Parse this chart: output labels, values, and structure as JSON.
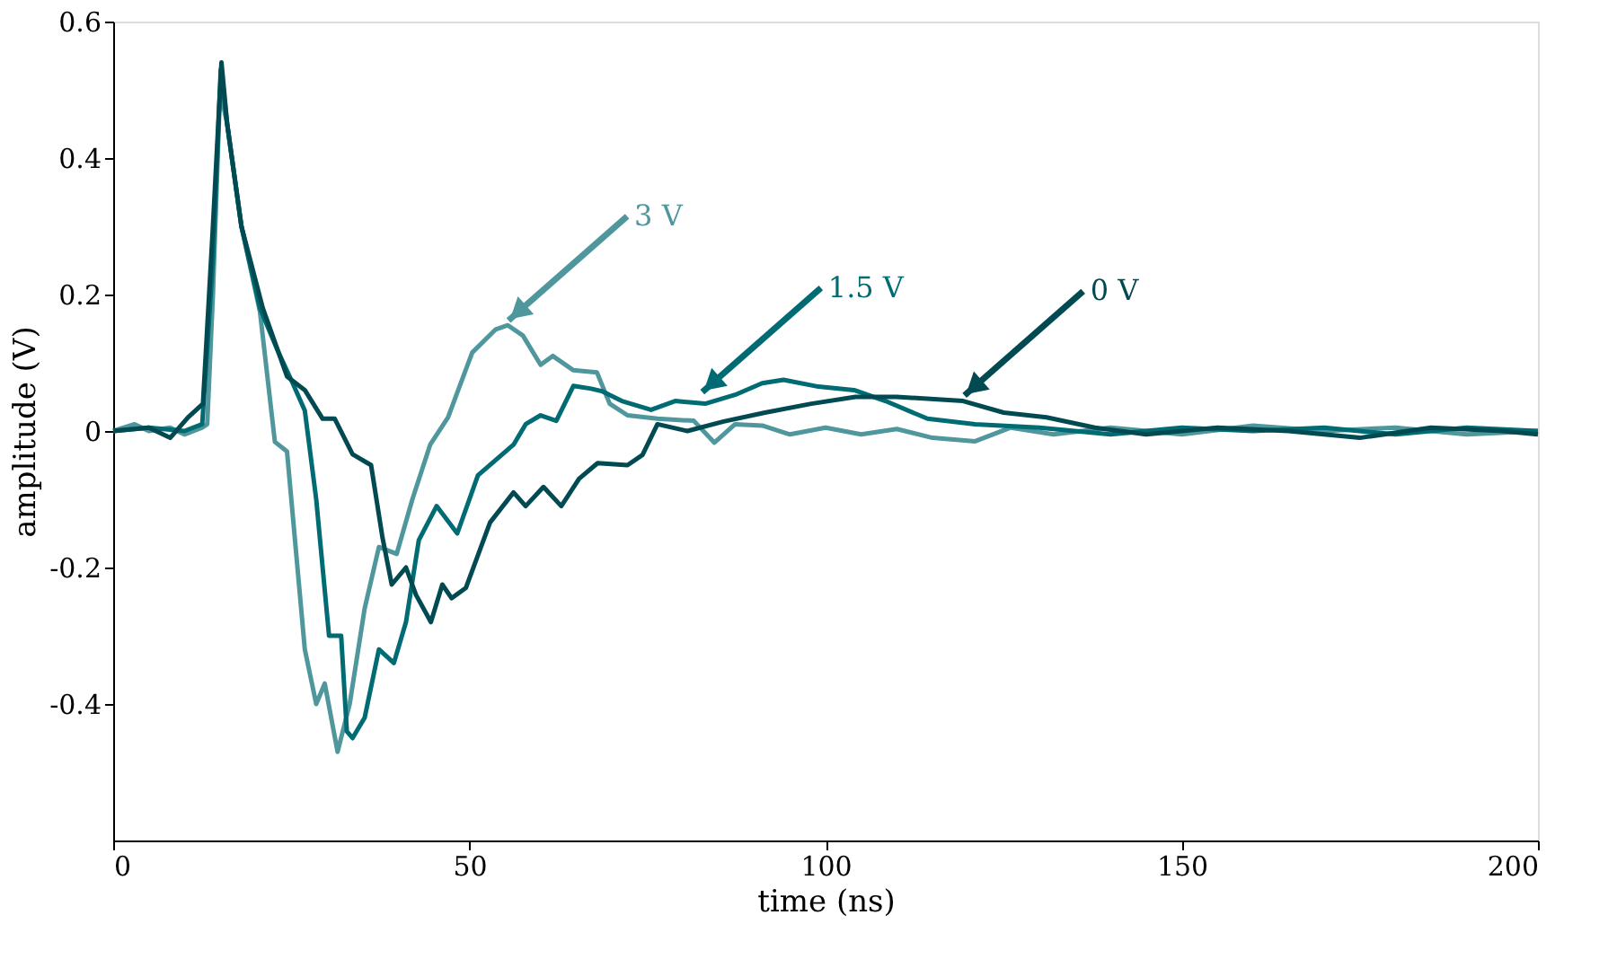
{
  "chart_data": {
    "type": "line",
    "xlabel": "time (ns)",
    "ylabel": "amplitude (V)",
    "xlim": [
      0,
      200
    ],
    "xticks": [
      0,
      50,
      100,
      150,
      200
    ],
    "ylim": [
      -0.6,
      0.6
    ],
    "yticks": [
      -0.4,
      -0.2,
      0,
      0.2,
      0.4,
      0.6
    ],
    "grid": false,
    "legend": false,
    "series": [
      {
        "color": "#4f979d",
        "x": [
          0,
          3,
          5,
          8,
          10,
          12.5,
          13.2,
          14,
          15,
          16,
          18,
          20.6,
          22.7,
          24.4,
          26.9,
          28.5,
          29.7,
          31.5,
          33.2,
          35.3,
          37.3,
          39.8,
          42,
          44.5,
          47,
          50.4,
          53.7,
          55.4,
          57.5,
          60,
          61.7,
          64.6,
          67.9,
          69.7,
          72.2,
          76.4,
          81.5,
          84.4,
          87.3,
          91.1,
          95,
          100,
          105,
          110,
          115,
          121,
          126,
          132,
          140,
          150,
          160,
          170,
          180,
          190,
          200
        ],
        "values": [
          0,
          0.01,
          0,
          0.005,
          -0.005,
          0.005,
          0.01,
          0.2,
          0.5,
          0.45,
          0.3,
          0.175,
          -0.016,
          -0.03,
          -0.32,
          -0.4,
          -0.37,
          -0.47,
          -0.4,
          -0.26,
          -0.17,
          -0.18,
          -0.1,
          -0.02,
          0.02,
          0.115,
          0.149,
          0.155,
          0.14,
          0.097,
          0.11,
          0.089,
          0.086,
          0.04,
          0.023,
          0.018,
          0.015,
          -0.017,
          0.01,
          0.008,
          -0.005,
          0.005,
          -0.005,
          0.003,
          -0.01,
          -0.015,
          0.005,
          -0.005,
          0.005,
          -0.005,
          0.008,
          0,
          0.005,
          -0.005,
          0
        ]
      },
      {
        "color": "#006b73",
        "x": [
          0,
          5,
          10,
          12.5,
          14,
          15.1,
          16,
          18,
          20.6,
          23,
          25.2,
          26.9,
          28.5,
          30.3,
          32,
          32.8,
          33.6,
          35.3,
          37.3,
          39.4,
          41.1,
          42.9,
          45.4,
          48.3,
          51.2,
          56.2,
          57.9,
          60,
          62.2,
          64.6,
          67.1,
          68.7,
          71.4,
          75.5,
          78.9,
          83.1,
          87.3,
          91.1,
          94.1,
          99,
          104,
          108.4,
          114.3,
          121,
          130,
          140,
          150,
          160,
          170,
          180,
          190,
          200
        ],
        "values": [
          0,
          0.005,
          0,
          0.01,
          0.25,
          0.53,
          0.45,
          0.3,
          0.18,
          0.12,
          0.07,
          0.03,
          -0.1,
          -0.3,
          -0.3,
          -0.44,
          -0.45,
          -0.42,
          -0.32,
          -0.34,
          -0.28,
          -0.16,
          -0.11,
          -0.15,
          -0.065,
          -0.02,
          0.01,
          0.023,
          0.015,
          0.066,
          0.062,
          0.058,
          0.044,
          0.031,
          0.044,
          0.04,
          0.053,
          0.07,
          0.075,
          0.065,
          0.06,
          0.044,
          0.018,
          0.01,
          0.005,
          -0.005,
          0.005,
          0,
          0.005,
          -0.005,
          0.005,
          0
        ]
      },
      {
        "color": "#024a52",
        "x": [
          0,
          5,
          8,
          10.5,
          12.6,
          14,
          15.2,
          16,
          18,
          21,
          24.4,
          26.9,
          29.4,
          31.1,
          33.6,
          36.2,
          37.8,
          39.1,
          41.1,
          42.5,
          44.6,
          46.2,
          47.5,
          49.5,
          52.9,
          56.2,
          57.9,
          60.4,
          62.9,
          65.4,
          68,
          72.2,
          74.3,
          76.4,
          80.6,
          85.7,
          91.5,
          98,
          104.2,
          110,
          119.3,
          125,
          131,
          137.8,
          145,
          155,
          165,
          175,
          185,
          195,
          200
        ],
        "values": [
          0,
          0.005,
          -0.01,
          0.02,
          0.04,
          0.3,
          0.54,
          0.45,
          0.3,
          0.18,
          0.08,
          0.06,
          0.018,
          0.018,
          -0.034,
          -0.05,
          -0.156,
          -0.225,
          -0.2,
          -0.24,
          -0.28,
          -0.225,
          -0.245,
          -0.23,
          -0.134,
          -0.09,
          -0.11,
          -0.082,
          -0.11,
          -0.07,
          -0.047,
          -0.05,
          -0.035,
          0.01,
          0,
          0.014,
          0.027,
          0.04,
          0.05,
          0.05,
          0.044,
          0.027,
          0.02,
          0.005,
          -0.005,
          0.005,
          0,
          -0.01,
          0.005,
          0,
          -0.005
        ]
      }
    ],
    "annotations": [
      {
        "text": "3 V",
        "x": 55.5,
        "y": 0.162
      },
      {
        "text": "1.5 V",
        "x": 82.7,
        "y": 0.057
      },
      {
        "text": "0 V",
        "x": 119.5,
        "y": 0.052
      }
    ]
  }
}
